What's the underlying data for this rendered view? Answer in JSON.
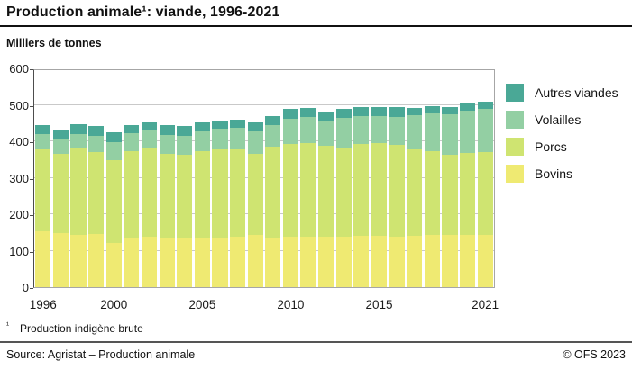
{
  "header": {
    "title": "Production animale¹: viande, 1996-2021",
    "unit_label": "Milliers de tonnes"
  },
  "chart_data": {
    "type": "bar",
    "stacked": true,
    "title": "Production animale: viande, 1996-2021",
    "ylabel": "Milliers de tonnes",
    "xlabel": "",
    "ylim": [
      0,
      600
    ],
    "y_ticks": [
      0,
      100,
      200,
      300,
      400,
      500,
      600
    ],
    "x_tick_labels": [
      1996,
      2000,
      2005,
      2010,
      2015,
      2021
    ],
    "grid": true,
    "legend_position": "top-right",
    "categories": [
      1996,
      1997,
      1998,
      1999,
      2000,
      2001,
      2002,
      2003,
      2004,
      2005,
      2006,
      2007,
      2008,
      2009,
      2010,
      2011,
      2012,
      2013,
      2014,
      2015,
      2016,
      2017,
      2018,
      2019,
      2020,
      2021
    ],
    "series": [
      {
        "name": "Bovins",
        "color": "#EFEA72",
        "values": [
          153,
          148,
          143,
          145,
          122,
          135,
          138,
          137,
          135,
          135,
          137,
          139,
          143,
          137,
          139,
          139,
          138,
          139,
          140,
          140,
          139,
          141,
          143,
          144,
          143,
          143
        ]
      },
      {
        "name": "Porcs",
        "color": "#CFE471",
        "values": [
          225,
          217,
          238,
          225,
          227,
          238,
          245,
          229,
          229,
          237,
          240,
          239,
          223,
          247,
          253,
          256,
          250,
          244,
          253,
          256,
          252,
          236,
          231,
          220,
          225,
          227
        ]
      },
      {
        "name": "Volailles",
        "color": "#93CFA3",
        "values": [
          41,
          43,
          39,
          45,
          49,
          49,
          46,
          51,
          51,
          55,
          58,
          59,
          60,
          61,
          69,
          71,
          66,
          82,
          75,
          74,
          77,
          95,
          103,
          109,
          115,
          118
        ]
      },
      {
        "name": "Autres viandes",
        "color": "#4AA896",
        "values": [
          25,
          24,
          27,
          26,
          26,
          23,
          23,
          27,
          27,
          25,
          21,
          23,
          25,
          25,
          27,
          25,
          25,
          25,
          25,
          25,
          27,
          20,
          20,
          20,
          20,
          20
        ]
      }
    ],
    "totals": [
      444,
      432,
      447,
      441,
      424,
      445,
      452,
      444,
      442,
      452,
      456,
      460,
      451,
      470,
      488,
      491,
      479,
      490,
      493,
      495,
      495,
      492,
      497,
      493,
      503,
      508
    ],
    "legend_labels_top_to_bottom": [
      "Autres viandes",
      "Volailles",
      "Porcs",
      "Bovins"
    ]
  },
  "footnote": {
    "marker": "¹",
    "text": "Production indigène brute"
  },
  "footer": {
    "source": "Source: Agristat – Production animale",
    "copyright": "© OFS 2023"
  }
}
